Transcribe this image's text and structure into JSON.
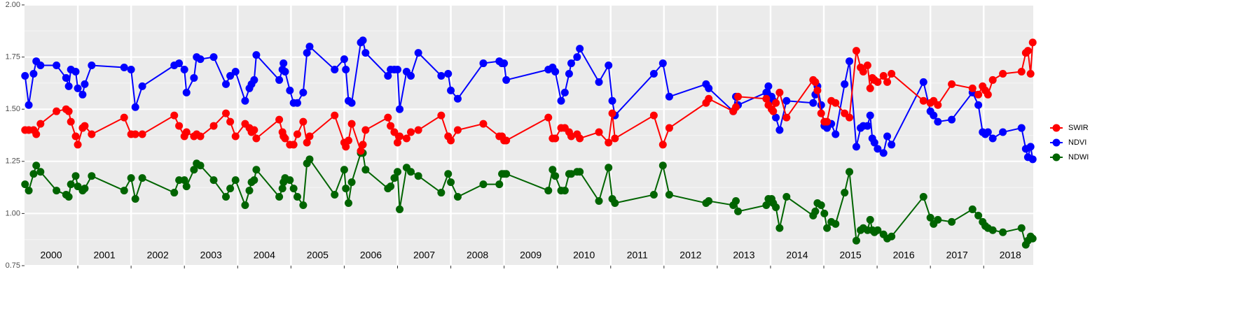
{
  "chart_data": {
    "type": "line",
    "x": [
      2000.01,
      2000.08,
      2000.17,
      2000.22,
      2000.3,
      2000.6,
      2000.78,
      2000.83,
      2000.87,
      2000.96,
      2001.0,
      2001.09,
      2001.13,
      2001.26,
      2001.87,
      2002.0,
      2002.08,
      2002.21,
      2002.81,
      2002.9,
      2003.0,
      2003.04,
      2003.18,
      2003.23,
      2003.3,
      2003.55,
      2003.78,
      2003.86,
      2003.96,
      2004.14,
      2004.22,
      2004.26,
      2004.31,
      2004.35,
      2004.78,
      2004.84,
      2004.86,
      2004.89,
      2004.98,
      2005.05,
      2005.12,
      2005.23,
      2005.3,
      2005.35,
      2005.82,
      2006.0,
      2006.03,
      2006.08,
      2006.14,
      2006.31,
      2006.35,
      2006.4,
      2006.82,
      2006.87,
      2006.94,
      2007.0,
      2007.04,
      2007.17,
      2007.25,
      2007.39,
      2007.82,
      2007.95,
      2008.0,
      2008.13,
      2008.61,
      2008.91,
      2008.96,
      2009.0,
      2009.04,
      2009.83,
      2009.91,
      2009.96,
      2010.07,
      2010.14,
      2010.22,
      2010.26,
      2010.37,
      2010.42,
      2010.78,
      2010.96,
      2011.03,
      2011.08,
      2011.81,
      2011.98,
      2012.1,
      2012.79,
      2012.84,
      2013.3,
      2013.35,
      2013.39,
      2013.92,
      2013.96,
      2014.02,
      2014.05,
      2014.1,
      2014.17,
      2014.3,
      2014.8,
      2014.84,
      2014.88,
      2014.95,
      2015.01,
      2015.06,
      2015.14,
      2015.22,
      2015.39,
      2015.48,
      2015.61,
      2015.69,
      2015.74,
      2015.82,
      2015.87,
      2015.91,
      2015.95,
      2016.01,
      2016.12,
      2016.19,
      2016.27,
      2016.87,
      2017.0,
      2017.06,
      2017.14,
      2017.4,
      2017.79,
      2017.9,
      2017.98,
      2018.03,
      2018.08,
      2018.17,
      2018.36,
      2018.71,
      2018.79,
      2018.83,
      2018.88,
      2018.92
    ],
    "series": [
      {
        "name": "SWIR",
        "color": "#ff0000",
        "values": [
          1.4,
          1.4,
          1.4,
          1.38,
          1.43,
          1.49,
          1.5,
          1.49,
          1.44,
          1.37,
          1.33,
          1.41,
          1.42,
          1.38,
          1.46,
          1.38,
          1.38,
          1.38,
          1.47,
          1.42,
          1.37,
          1.39,
          1.37,
          1.38,
          1.37,
          1.42,
          1.48,
          1.44,
          1.37,
          1.43,
          1.41,
          1.39,
          1.4,
          1.36,
          1.45,
          1.39,
          1.37,
          1.36,
          1.33,
          1.33,
          1.38,
          1.44,
          1.34,
          1.37,
          1.47,
          1.34,
          1.32,
          1.35,
          1.43,
          1.3,
          1.33,
          1.4,
          1.46,
          1.42,
          1.39,
          1.34,
          1.37,
          1.36,
          1.39,
          1.4,
          1.47,
          1.37,
          1.35,
          1.4,
          1.43,
          1.37,
          1.37,
          1.35,
          1.35,
          1.46,
          1.36,
          1.36,
          1.41,
          1.41,
          1.39,
          1.37,
          1.38,
          1.36,
          1.39,
          1.34,
          1.48,
          1.36,
          1.47,
          1.33,
          1.41,
          1.53,
          1.55,
          1.49,
          1.51,
          1.56,
          1.55,
          1.52,
          1.5,
          1.49,
          1.53,
          1.58,
          1.46,
          1.64,
          1.63,
          1.59,
          1.48,
          1.44,
          1.44,
          1.54,
          1.53,
          1.48,
          1.46,
          1.78,
          1.7,
          1.68,
          1.71,
          1.6,
          1.65,
          1.64,
          1.63,
          1.66,
          1.63,
          1.67,
          1.54,
          1.53,
          1.54,
          1.52,
          1.62,
          1.6,
          1.57,
          1.61,
          1.59,
          1.57,
          1.64,
          1.67,
          1.68,
          1.77,
          1.78,
          1.67,
          1.82
        ]
      },
      {
        "name": "NDVI",
        "color": "#0000ff",
        "values": [
          1.66,
          1.52,
          1.67,
          1.73,
          1.71,
          1.71,
          1.65,
          1.61,
          1.69,
          1.68,
          1.6,
          1.57,
          1.62,
          1.71,
          1.7,
          1.69,
          1.51,
          1.61,
          1.71,
          1.72,
          1.69,
          1.58,
          1.65,
          1.75,
          1.74,
          1.75,
          1.62,
          1.66,
          1.68,
          1.54,
          1.6,
          1.62,
          1.64,
          1.76,
          1.64,
          1.69,
          1.72,
          1.68,
          1.59,
          1.53,
          1.53,
          1.58,
          1.77,
          1.8,
          1.69,
          1.74,
          1.69,
          1.54,
          1.53,
          1.82,
          1.83,
          1.77,
          1.66,
          1.69,
          1.69,
          1.69,
          1.5,
          1.68,
          1.66,
          1.77,
          1.66,
          1.67,
          1.59,
          1.55,
          1.72,
          1.73,
          1.72,
          1.72,
          1.64,
          1.69,
          1.7,
          1.68,
          1.54,
          1.58,
          1.67,
          1.72,
          1.75,
          1.79,
          1.63,
          1.71,
          1.54,
          1.47,
          1.67,
          1.72,
          1.56,
          1.62,
          1.6,
          1.49,
          1.56,
          1.52,
          1.58,
          1.61,
          1.56,
          1.54,
          1.46,
          1.4,
          1.54,
          1.53,
          1.57,
          1.61,
          1.52,
          1.42,
          1.41,
          1.43,
          1.38,
          1.62,
          1.73,
          1.32,
          1.41,
          1.42,
          1.42,
          1.47,
          1.36,
          1.34,
          1.31,
          1.29,
          1.37,
          1.33,
          1.63,
          1.49,
          1.47,
          1.44,
          1.45,
          1.58,
          1.52,
          1.39,
          1.38,
          1.39,
          1.36,
          1.39,
          1.41,
          1.31,
          1.27,
          1.32,
          1.26
        ]
      },
      {
        "name": "NDWI",
        "color": "#006400",
        "values": [
          1.14,
          1.11,
          1.19,
          1.23,
          1.2,
          1.11,
          1.09,
          1.08,
          1.14,
          1.18,
          1.13,
          1.11,
          1.12,
          1.18,
          1.11,
          1.17,
          1.07,
          1.17,
          1.1,
          1.16,
          1.16,
          1.13,
          1.21,
          1.24,
          1.23,
          1.16,
          1.08,
          1.12,
          1.16,
          1.04,
          1.11,
          1.15,
          1.16,
          1.21,
          1.08,
          1.12,
          1.15,
          1.17,
          1.16,
          1.12,
          1.08,
          1.04,
          1.24,
          1.26,
          1.09,
          1.21,
          1.12,
          1.05,
          1.15,
          1.29,
          1.29,
          1.21,
          1.12,
          1.13,
          1.17,
          1.2,
          1.02,
          1.22,
          1.2,
          1.18,
          1.1,
          1.19,
          1.15,
          1.08,
          1.14,
          1.14,
          1.19,
          1.19,
          1.19,
          1.11,
          1.21,
          1.18,
          1.11,
          1.11,
          1.19,
          1.19,
          1.2,
          1.2,
          1.06,
          1.22,
          1.07,
          1.05,
          1.09,
          1.23,
          1.09,
          1.05,
          1.06,
          1.04,
          1.06,
          1.01,
          1.04,
          1.07,
          1.07,
          1.05,
          1.03,
          0.93,
          1.08,
          0.99,
          1.01,
          1.05,
          1.04,
          1.0,
          0.93,
          0.96,
          0.95,
          1.1,
          1.2,
          0.87,
          0.92,
          0.93,
          0.92,
          0.97,
          0.92,
          0.91,
          0.92,
          0.9,
          0.88,
          0.89,
          1.08,
          0.98,
          0.95,
          0.97,
          0.96,
          1.02,
          0.99,
          0.96,
          0.94,
          0.93,
          0.92,
          0.91,
          0.93,
          0.85,
          0.87,
          0.89,
          0.88
        ]
      }
    ],
    "xlim": [
      2000,
      2018.93
    ],
    "xticks": [
      2001,
      2002,
      2003,
      2004,
      2005,
      2006,
      2007,
      2008,
      2009,
      2010,
      2011,
      2012,
      2013,
      2014,
      2015,
      2016,
      2017,
      2018
    ],
    "ylim": [
      0.75,
      2.0
    ],
    "yticks": [
      {
        "value": 0.75,
        "label": "0.75"
      },
      {
        "value": 1,
        "label": "1.00"
      },
      {
        "value": 1.25,
        "label": "1.25"
      },
      {
        "value": 1.5,
        "label": "1.50"
      },
      {
        "value": 1.75,
        "label": "1.75"
      },
      {
        "value": 2,
        "label": "2.00"
      }
    ],
    "yminor": [
      0.875,
      1.125,
      1.375,
      1.625,
      1.875
    ],
    "year_labels": [
      {
        "text": "2000",
        "x": 2000.5
      },
      {
        "text": "2001",
        "x": 2001.5
      },
      {
        "text": "2002",
        "x": 2002.5
      },
      {
        "text": "2003",
        "x": 2003.5
      },
      {
        "text": "2004",
        "x": 2004.5
      },
      {
        "text": "2005",
        "x": 2005.5
      },
      {
        "text": "2006",
        "x": 2006.5
      },
      {
        "text": "2007",
        "x": 2007.5
      },
      {
        "text": "2008",
        "x": 2008.5
      },
      {
        "text": "2009",
        "x": 2009.5
      },
      {
        "text": "2010",
        "x": 2010.5
      },
      {
        "text": "2011",
        "x": 2011.5
      },
      {
        "text": "2012",
        "x": 2012.5
      },
      {
        "text": "2013",
        "x": 2013.5
      },
      {
        "text": "2014",
        "x": 2014.5
      },
      {
        "text": "2015",
        "x": 2015.5
      },
      {
        "text": "2016",
        "x": 2016.5
      },
      {
        "text": "2017",
        "x": 2017.5
      },
      {
        "text": "2018",
        "x": 2018.5
      }
    ],
    "grid": true,
    "legend": "right"
  }
}
